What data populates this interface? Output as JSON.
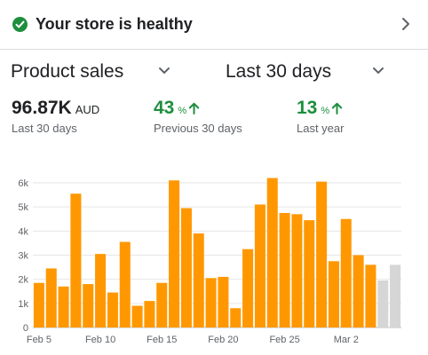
{
  "health": {
    "title": "Your store is healthy",
    "status_icon": "check-circle-icon",
    "status_color": "#1e8e3e"
  },
  "selectors": {
    "metric": "Product sales",
    "range": "Last 30 days"
  },
  "metrics": {
    "total": {
      "value": "96.87K",
      "unit": "AUD",
      "caption": "Last 30 days"
    },
    "previous": {
      "value": "43",
      "unit": "%",
      "trend": "up",
      "caption": "Previous 30 days"
    },
    "year": {
      "value": "13",
      "unit": "%",
      "trend": "up",
      "caption": "Last year"
    }
  },
  "colors": {
    "bar": "#ff9800",
    "bar_projected": "#d6d6d6",
    "positive": "#1e8e3e"
  },
  "chart_data": {
    "type": "bar",
    "grid": true,
    "ylim": [
      0,
      6000
    ],
    "yticks": [
      0,
      1000,
      2000,
      3000,
      4000,
      5000,
      6000
    ],
    "ytick_labels": [
      "0",
      "1k",
      "2k",
      "3k",
      "4k",
      "5k",
      "6k"
    ],
    "xtick_labels": [
      {
        "index": 0,
        "label": "Feb 5"
      },
      {
        "index": 5,
        "label": "Feb 10"
      },
      {
        "index": 10,
        "label": "Feb 15"
      },
      {
        "index": 15,
        "label": "Feb 20"
      },
      {
        "index": 20,
        "label": "Feb 25"
      },
      {
        "index": 25,
        "label": "Mar 2"
      }
    ],
    "categories": [
      "Feb 5",
      "Feb 6",
      "Feb 7",
      "Feb 8",
      "Feb 9",
      "Feb 10",
      "Feb 11",
      "Feb 12",
      "Feb 13",
      "Feb 14",
      "Feb 15",
      "Feb 16",
      "Feb 17",
      "Feb 18",
      "Feb 19",
      "Feb 20",
      "Feb 21",
      "Feb 22",
      "Feb 23",
      "Feb 24",
      "Feb 25",
      "Feb 26",
      "Feb 27",
      "Feb 28",
      "Mar 1",
      "Mar 2",
      "Mar 3",
      "Mar 4",
      "Mar 5",
      "Mar 6"
    ],
    "values": [
      1850,
      2450,
      1700,
      5550,
      1800,
      3050,
      1450,
      3550,
      900,
      1100,
      1850,
      6100,
      4950,
      3900,
      2050,
      2100,
      800,
      3250,
      5100,
      6200,
      4750,
      4700,
      4450,
      6050,
      2750,
      4500,
      3000,
      2600,
      1950,
      2600
    ],
    "projected": [
      false,
      false,
      false,
      false,
      false,
      false,
      false,
      false,
      false,
      false,
      false,
      false,
      false,
      false,
      false,
      false,
      false,
      false,
      false,
      false,
      false,
      false,
      false,
      false,
      false,
      false,
      false,
      false,
      true,
      true
    ]
  }
}
